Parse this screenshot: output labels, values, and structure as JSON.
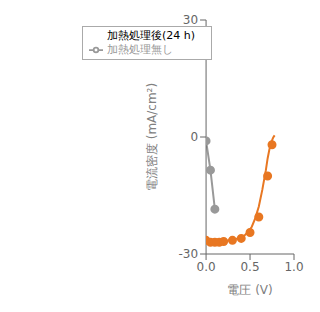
{
  "chart_data": {
    "type": "line",
    "xlabel": "電圧 (V)",
    "ylabel": "電流密度 (mA/cm²)",
    "xlim": [
      0.0,
      1.0
    ],
    "xticks": [
      {
        "value": 0.0,
        "label": "0.0"
      },
      0.5,
      {
        "value": 1.0,
        "label": "1.0"
      }
    ],
    "ylim": [
      -30,
      30
    ],
    "yticks": [
      -30,
      0,
      30
    ],
    "grid": false,
    "legend": "upper left",
    "series": [
      {
        "name": "加熱処理無し",
        "color": "#999999",
        "marker": "o",
        "line_style": "solid",
        "x": [
          0.0,
          0.05,
          0.1
        ],
        "values": [
          -1.0,
          -8.5,
          -18.5
        ]
      },
      {
        "color": "#E87722",
        "marker": "none",
        "line_style": "solid",
        "x": [
          0.0,
          0.04,
          0.08,
          0.12,
          0.16,
          0.2,
          0.24,
          0.28,
          0.32,
          0.36,
          0.4,
          0.44,
          0.48,
          0.52,
          0.56,
          0.6,
          0.64,
          0.68,
          0.7,
          0.72,
          0.74,
          0.76,
          0.77,
          0.78
        ],
        "values": [
          -26.5,
          -26.9,
          -27.1,
          -27.1,
          -27.0,
          -26.8,
          -26.6,
          -26.4,
          -26.2,
          -26.0,
          -25.7,
          -25.2,
          -24.3,
          -23.0,
          -20.8,
          -17.8,
          -13.5,
          -8.5,
          -5.5,
          -3.2,
          -1.5,
          -0.3,
          0.1,
          0.4
        ]
      },
      {
        "name": "加熱処理後(24 h)",
        "color": "#E87722",
        "marker": "o",
        "line_style": "none",
        "x": [
          0.0,
          0.05,
          0.1,
          0.15,
          0.2,
          0.3,
          0.4,
          0.5,
          0.6,
          0.7,
          0.75
        ],
        "values": [
          -26.5,
          -27.0,
          -27.0,
          -27.0,
          -26.8,
          -26.5,
          -26.0,
          -24.5,
          -20.5,
          -10.0,
          -2.0
        ]
      }
    ]
  }
}
